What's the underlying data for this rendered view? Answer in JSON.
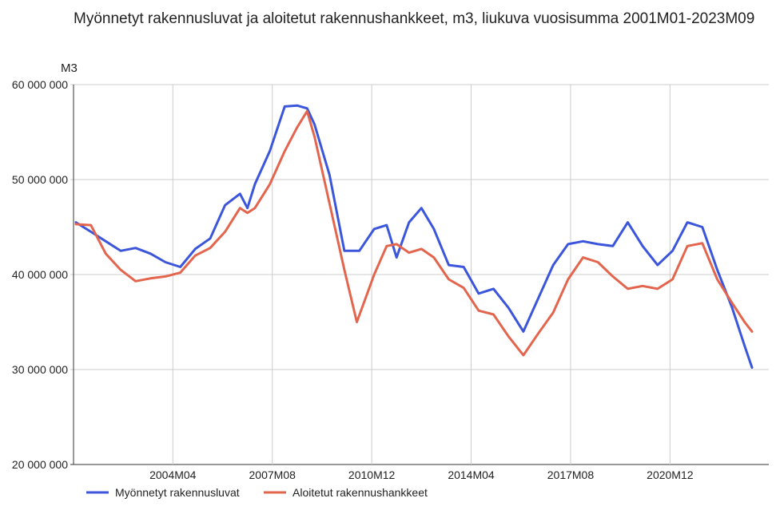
{
  "chart_data": {
    "type": "line",
    "title": "Myönnetyt rakennusluvat ja aloitetut rakennushankkeet, m3, liukuva vuosisumma 2001M01-2023M09",
    "ylabel": "M3",
    "xlabel": "",
    "ylim": [
      20000000,
      60000000
    ],
    "yticks": [
      {
        "value": 20000000,
        "label": "20 000 000"
      },
      {
        "value": 30000000,
        "label": "30 000 000"
      },
      {
        "value": 40000000,
        "label": "40 000 000"
      },
      {
        "value": 50000000,
        "label": "50 000 000"
      },
      {
        "value": 60000000,
        "label": "60 000 000"
      }
    ],
    "xlim": [
      "2001M01",
      "2023M09"
    ],
    "xticks": [
      "2004M04",
      "2007M08",
      "2010M12",
      "2014M04",
      "2017M08",
      "2020M12"
    ],
    "grid": true,
    "legend_position": "bottom-left",
    "series": [
      {
        "name": "Myönnetyt rakennusluvat",
        "color": "#3b55db",
        "points": [
          [
            "2001M01",
            45500000
          ],
          [
            "2001M07",
            44500000
          ],
          [
            "2002M01",
            43500000
          ],
          [
            "2002M07",
            42500000
          ],
          [
            "2003M01",
            42800000
          ],
          [
            "2003M07",
            42200000
          ],
          [
            "2004M01",
            41300000
          ],
          [
            "2004M07",
            40800000
          ],
          [
            "2005M01",
            42700000
          ],
          [
            "2005M07",
            43800000
          ],
          [
            "2006M01",
            47300000
          ],
          [
            "2006M07",
            48500000
          ],
          [
            "2006M10",
            47000000
          ],
          [
            "2007M01",
            49500000
          ],
          [
            "2007M07",
            53000000
          ],
          [
            "2008M01",
            57700000
          ],
          [
            "2008M06",
            57800000
          ],
          [
            "2008M10",
            57500000
          ],
          [
            "2009M01",
            55800000
          ],
          [
            "2009M07",
            50500000
          ],
          [
            "2010M01",
            42500000
          ],
          [
            "2010M07",
            42500000
          ],
          [
            "2011M01",
            44800000
          ],
          [
            "2011M06",
            45200000
          ],
          [
            "2011M10",
            41800000
          ],
          [
            "2012M03",
            45500000
          ],
          [
            "2012M08",
            47000000
          ],
          [
            "2013M01",
            44800000
          ],
          [
            "2013M07",
            41000000
          ],
          [
            "2014M01",
            40800000
          ],
          [
            "2014M07",
            38000000
          ],
          [
            "2015M01",
            38500000
          ],
          [
            "2015M07",
            36500000
          ],
          [
            "2016M01",
            34000000
          ],
          [
            "2016M07",
            37500000
          ],
          [
            "2017M01",
            41000000
          ],
          [
            "2017M07",
            43200000
          ],
          [
            "2018M01",
            43500000
          ],
          [
            "2018M07",
            43200000
          ],
          [
            "2019M01",
            43000000
          ],
          [
            "2019M07",
            45500000
          ],
          [
            "2020M01",
            43000000
          ],
          [
            "2020M07",
            41000000
          ],
          [
            "2021M01",
            42500000
          ],
          [
            "2021M07",
            45500000
          ],
          [
            "2022M01",
            45000000
          ],
          [
            "2022M07",
            40500000
          ],
          [
            "2023M01",
            36500000
          ],
          [
            "2023M06",
            32500000
          ],
          [
            "2023M09",
            30200000
          ]
        ]
      },
      {
        "name": "Aloitetut rakennushankkeet",
        "color": "#e3654e",
        "points": [
          [
            "2001M01",
            45300000
          ],
          [
            "2001M07",
            45200000
          ],
          [
            "2002M01",
            42200000
          ],
          [
            "2002M07",
            40500000
          ],
          [
            "2003M01",
            39300000
          ],
          [
            "2003M07",
            39600000
          ],
          [
            "2004M01",
            39800000
          ],
          [
            "2004M07",
            40200000
          ],
          [
            "2005M01",
            42000000
          ],
          [
            "2005M07",
            42800000
          ],
          [
            "2006M01",
            44500000
          ],
          [
            "2006M07",
            47000000
          ],
          [
            "2006M10",
            46500000
          ],
          [
            "2007M01",
            47000000
          ],
          [
            "2007M07",
            49500000
          ],
          [
            "2008M01",
            53000000
          ],
          [
            "2008M06",
            55500000
          ],
          [
            "2008M10",
            57200000
          ],
          [
            "2009M01",
            54500000
          ],
          [
            "2009M07",
            47500000
          ],
          [
            "2010M01",
            40500000
          ],
          [
            "2010M06",
            35000000
          ],
          [
            "2011M01",
            40000000
          ],
          [
            "2011M06",
            43000000
          ],
          [
            "2011M10",
            43200000
          ],
          [
            "2012M03",
            42300000
          ],
          [
            "2012M08",
            42700000
          ],
          [
            "2013M01",
            41800000
          ],
          [
            "2013M07",
            39500000
          ],
          [
            "2014M01",
            38600000
          ],
          [
            "2014M07",
            36200000
          ],
          [
            "2015M01",
            35800000
          ],
          [
            "2015M07",
            33500000
          ],
          [
            "2016M01",
            31500000
          ],
          [
            "2016M07",
            33800000
          ],
          [
            "2017M01",
            36000000
          ],
          [
            "2017M07",
            39500000
          ],
          [
            "2018M01",
            41800000
          ],
          [
            "2018M07",
            41300000
          ],
          [
            "2019M01",
            39800000
          ],
          [
            "2019M07",
            38500000
          ],
          [
            "2020M01",
            38800000
          ],
          [
            "2020M07",
            38500000
          ],
          [
            "2021M01",
            39500000
          ],
          [
            "2021M07",
            43000000
          ],
          [
            "2022M01",
            43300000
          ],
          [
            "2022M07",
            39500000
          ],
          [
            "2023M01",
            37000000
          ],
          [
            "2023M06",
            35000000
          ],
          [
            "2023M09",
            34000000
          ]
        ]
      }
    ]
  }
}
